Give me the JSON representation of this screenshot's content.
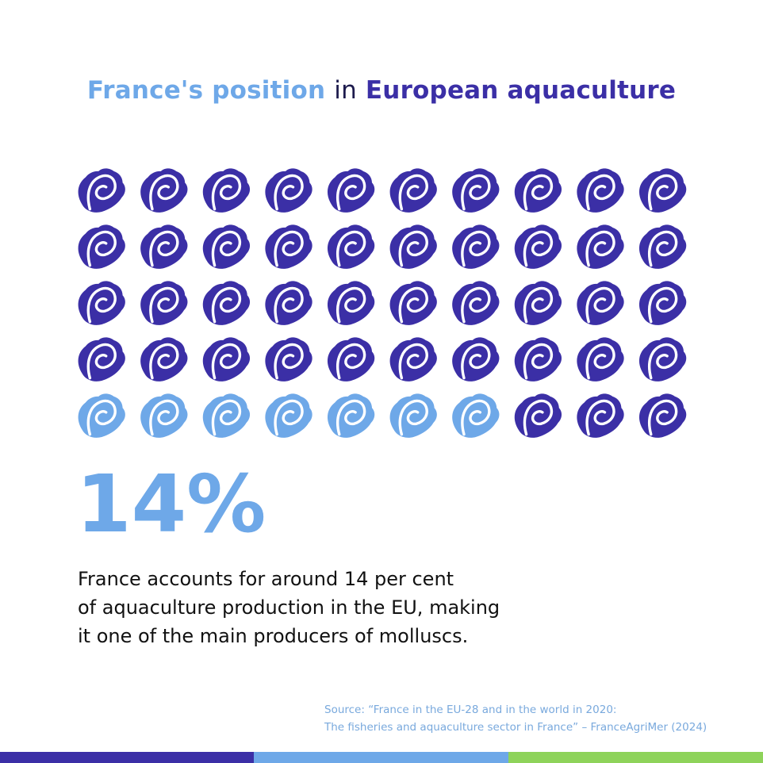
{
  "title": {
    "highlight": "France's position",
    "connector": "in",
    "rest": "European aquaculture"
  },
  "chart_data": {
    "type": "pictograph",
    "rows": 5,
    "cols": 10,
    "highlighted_icons": 7,
    "total_icons": 50,
    "highlight_color": "#6ea8e8",
    "base_color": "#3b2fa6",
    "icon": "oyster-icon",
    "value_label": "14%"
  },
  "description": {
    "line1": "France accounts for around 14 per cent",
    "line2": "of aquaculture production in the EU, making",
    "line3": "it one of the main producers of molluscs."
  },
  "source": {
    "line1": "Source: “France in the EU-28 and in the world in 2020:",
    "line2": "The fisheries and aquaculture sector in France” – FranceAgriMer (2024)"
  },
  "footer_colors": [
    "#3b2fa6",
    "#6ea8e8",
    "#8ed35a"
  ]
}
